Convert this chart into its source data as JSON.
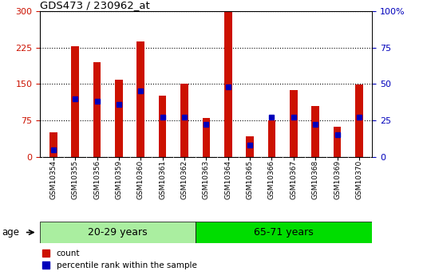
{
  "title": "GDS473 / 230962_at",
  "samples": [
    "GSM10354",
    "GSM10355",
    "GSM10356",
    "GSM10359",
    "GSM10360",
    "GSM10361",
    "GSM10362",
    "GSM10363",
    "GSM10364",
    "GSM10365",
    "GSM10366",
    "GSM10367",
    "GSM10368",
    "GSM10369",
    "GSM10370"
  ],
  "counts": [
    50,
    228,
    195,
    158,
    238,
    125,
    150,
    80,
    298,
    42,
    75,
    138,
    105,
    62,
    148
  ],
  "percentile_ranks": [
    5,
    40,
    38,
    36,
    45,
    27,
    27,
    22,
    48,
    8,
    27,
    27,
    22,
    15,
    27
  ],
  "group1_label": "20-29 years",
  "group2_label": "65-71 years",
  "group1_count": 7,
  "group2_count": 8,
  "ylim_left": [
    0,
    300
  ],
  "ylim_right": [
    0,
    100
  ],
  "yticks_left": [
    0,
    75,
    150,
    225,
    300
  ],
  "yticks_right": [
    0,
    25,
    50,
    75,
    100
  ],
  "bar_color": "#CC1100",
  "blue_color": "#0000BB",
  "group1_bg": "#AAEEA0",
  "group2_bg": "#00DD00",
  "tick_bg": "#C8C8C8",
  "legend_count_label": "count",
  "legend_pct_label": "percentile rank within the sample",
  "age_label": "age"
}
